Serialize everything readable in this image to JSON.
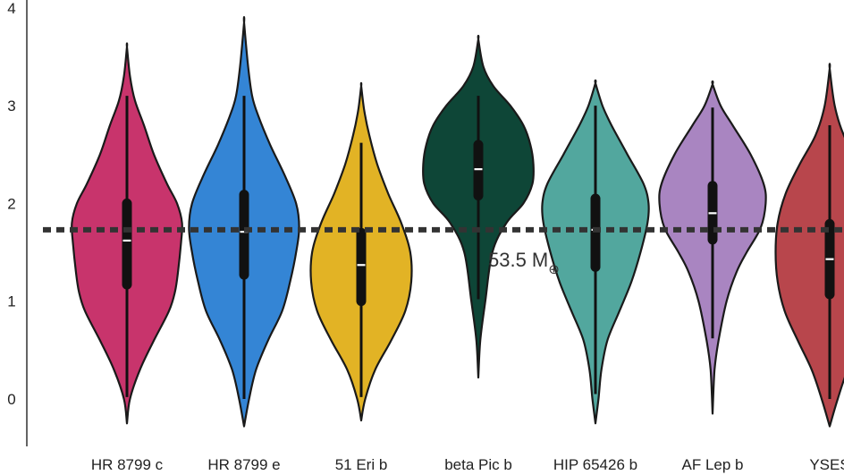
{
  "chart_data": {
    "type": "violin",
    "title": "",
    "xlabel": "",
    "ylabel": "",
    "ylim": [
      -0.5,
      4.0
    ],
    "yticks": [
      0,
      1,
      2,
      3,
      4
    ],
    "ytick_labels": [
      "0",
      "1",
      "2",
      "3",
      "4"
    ],
    "grid": false,
    "legend": "none",
    "reference_line": {
      "value": 1.73,
      "label": "53.5 M",
      "label_symbol": "⊕",
      "style": "dotted",
      "color": "#333333"
    },
    "categories": [
      "HR 8799 c",
      "HR 8799 e",
      "51 Eri b",
      "beta Pic b",
      "HIP 65426 b",
      "AF Lep b",
      "YSES"
    ],
    "series": [
      {
        "category": "HR 8799 c",
        "color": "#C8346C",
        "min": -0.25,
        "max": 3.6,
        "q1": 1.12,
        "median": 1.62,
        "q3": 2.05,
        "whisker_low": 0.02,
        "whisker_high": 3.1,
        "profile": [
          [
            -0.25,
            0.0
          ],
          [
            0.0,
            0.03
          ],
          [
            0.3,
            0.13
          ],
          [
            0.6,
            0.27
          ],
          [
            0.9,
            0.42
          ],
          [
            1.1,
            0.48
          ],
          [
            1.3,
            0.51
          ],
          [
            1.6,
            0.54
          ],
          [
            1.8,
            0.55
          ],
          [
            2.0,
            0.5
          ],
          [
            2.2,
            0.4
          ],
          [
            2.5,
            0.27
          ],
          [
            2.8,
            0.17
          ],
          [
            3.05,
            0.08
          ],
          [
            3.3,
            0.03
          ],
          [
            3.6,
            0.0
          ]
        ]
      },
      {
        "category": "HR 8799 e",
        "color": "#3485D5",
        "min": -0.28,
        "max": 3.85,
        "q1": 1.22,
        "median": 1.71,
        "q3": 2.14,
        "whisker_low": 0.0,
        "whisker_high": 3.1,
        "profile": [
          [
            -0.28,
            0.0
          ],
          [
            0.0,
            0.05
          ],
          [
            0.3,
            0.12
          ],
          [
            0.6,
            0.24
          ],
          [
            0.9,
            0.38
          ],
          [
            1.2,
            0.46
          ],
          [
            1.5,
            0.52
          ],
          [
            1.75,
            0.55
          ],
          [
            2.0,
            0.52
          ],
          [
            2.3,
            0.4
          ],
          [
            2.6,
            0.26
          ],
          [
            2.9,
            0.14
          ],
          [
            3.1,
            0.08
          ],
          [
            3.4,
            0.04
          ],
          [
            3.85,
            0.0
          ]
        ]
      },
      {
        "category": "51 Eri b",
        "color": "#E2B325",
        "min": -0.22,
        "max": 3.2,
        "q1": 0.95,
        "median": 1.37,
        "q3": 1.75,
        "whisker_low": 0.02,
        "whisker_high": 2.62,
        "profile": [
          [
            -0.22,
            0.0
          ],
          [
            0.0,
            0.04
          ],
          [
            0.3,
            0.14
          ],
          [
            0.6,
            0.3
          ],
          [
            0.9,
            0.44
          ],
          [
            1.2,
            0.5
          ],
          [
            1.5,
            0.49
          ],
          [
            1.8,
            0.4
          ],
          [
            2.1,
            0.27
          ],
          [
            2.4,
            0.16
          ],
          [
            2.7,
            0.08
          ],
          [
            2.95,
            0.03
          ],
          [
            3.2,
            0.0
          ]
        ]
      },
      {
        "category": "beta Pic b",
        "color": "#0E4637",
        "min": 0.22,
        "max": 3.68,
        "q1": 2.03,
        "median": 2.35,
        "q3": 2.65,
        "whisker_low": 1.02,
        "whisker_high": 3.1,
        "profile": [
          [
            0.22,
            0.0
          ],
          [
            0.6,
            0.02
          ],
          [
            1.0,
            0.07
          ],
          [
            1.5,
            0.14
          ],
          [
            1.8,
            0.28
          ],
          [
            2.0,
            0.45
          ],
          [
            2.2,
            0.54
          ],
          [
            2.4,
            0.55
          ],
          [
            2.6,
            0.52
          ],
          [
            2.8,
            0.45
          ],
          [
            3.0,
            0.32
          ],
          [
            3.2,
            0.15
          ],
          [
            3.4,
            0.05
          ],
          [
            3.68,
            0.0
          ]
        ]
      },
      {
        "category": "HIP 65426 b",
        "color": "#52A79E",
        "min": -0.25,
        "max": 3.23,
        "q1": 1.3,
        "median": 1.73,
        "q3": 2.1,
        "whisker_low": 0.05,
        "whisker_high": 3.0,
        "profile": [
          [
            -0.25,
            0.0
          ],
          [
            0.0,
            0.03
          ],
          [
            0.3,
            0.06
          ],
          [
            0.6,
            0.12
          ],
          [
            0.9,
            0.24
          ],
          [
            1.2,
            0.36
          ],
          [
            1.5,
            0.45
          ],
          [
            1.8,
            0.52
          ],
          [
            2.0,
            0.53
          ],
          [
            2.2,
            0.48
          ],
          [
            2.5,
            0.32
          ],
          [
            2.8,
            0.16
          ],
          [
            3.0,
            0.07
          ],
          [
            3.23,
            0.0
          ]
        ]
      },
      {
        "category": "AF Lep b",
        "color": "#A985C1",
        "min": -0.15,
        "max": 3.22,
        "q1": 1.58,
        "median": 1.9,
        "q3": 2.23,
        "whisker_low": 0.62,
        "whisker_high": 2.98,
        "profile": [
          [
            -0.15,
            0.0
          ],
          [
            0.3,
            0.02
          ],
          [
            0.6,
            0.06
          ],
          [
            1.0,
            0.14
          ],
          [
            1.3,
            0.24
          ],
          [
            1.5,
            0.34
          ],
          [
            1.75,
            0.48
          ],
          [
            2.0,
            0.53
          ],
          [
            2.2,
            0.51
          ],
          [
            2.5,
            0.38
          ],
          [
            2.8,
            0.2
          ],
          [
            3.0,
            0.08
          ],
          [
            3.22,
            0.0
          ]
        ]
      },
      {
        "category": "YSES",
        "color": "#B8464C",
        "min": -0.28,
        "max": 3.38,
        "q1": 1.02,
        "median": 1.43,
        "q3": 1.84,
        "whisker_low": 0.0,
        "whisker_high": 2.8,
        "profile": [
          [
            -0.28,
            0.0
          ],
          [
            0.0,
            0.08
          ],
          [
            0.3,
            0.18
          ],
          [
            0.6,
            0.32
          ],
          [
            0.9,
            0.45
          ],
          [
            1.2,
            0.52
          ],
          [
            1.5,
            0.54
          ],
          [
            1.8,
            0.52
          ],
          [
            2.1,
            0.44
          ],
          [
            2.4,
            0.3
          ],
          [
            2.7,
            0.14
          ],
          [
            3.0,
            0.05
          ],
          [
            3.38,
            0.0
          ]
        ]
      }
    ]
  }
}
